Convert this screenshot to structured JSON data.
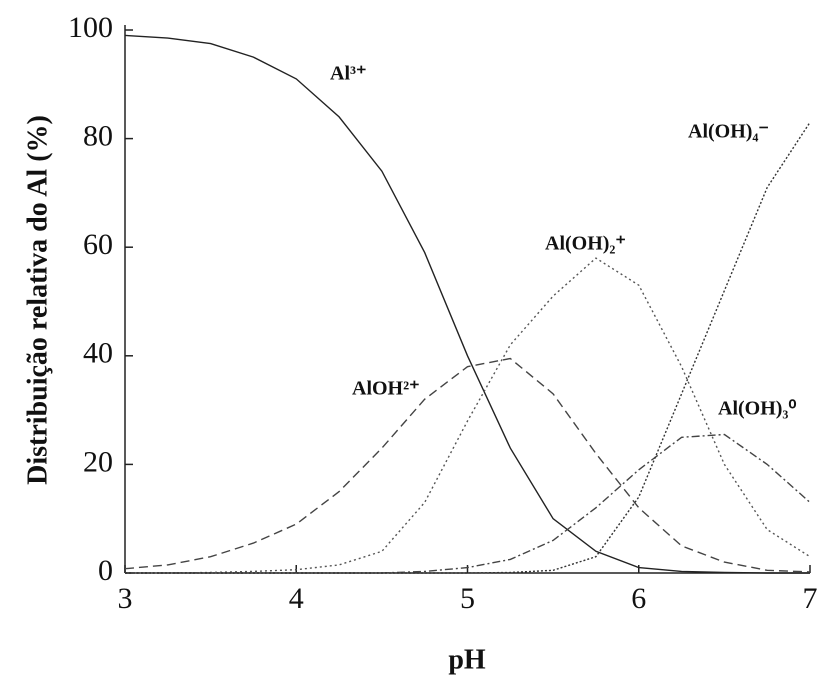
{
  "chart_data": {
    "type": "line",
    "x_label": "pH",
    "y_label": "Distribuição relativa do Al (%)",
    "x": [
      3,
      3.25,
      3.5,
      3.75,
      4,
      4.25,
      4.5,
      4.75,
      5,
      5.25,
      5.5,
      5.75,
      6,
      6.25,
      6.5,
      6.75,
      7
    ],
    "xlim": [
      3,
      7
    ],
    "xticks": [
      3,
      4,
      5,
      6,
      7
    ],
    "ylim": [
      0,
      100
    ],
    "yticks": [
      0,
      20,
      40,
      60,
      80,
      100
    ],
    "series": [
      {
        "name": "Al³⁺",
        "color": "#222222",
        "linestyle": "solid",
        "values": [
          99,
          98.5,
          97.5,
          95,
          91,
          84,
          74,
          59,
          40,
          23,
          10,
          4,
          1,
          0.3,
          0.1,
          0,
          0
        ]
      },
      {
        "name": "AlOH²⁺",
        "color": "#444444",
        "linestyle": "dashed",
        "values": [
          0.8,
          1.5,
          3,
          5.5,
          9,
          15,
          23,
          32,
          38,
          39.5,
          33,
          22,
          12,
          5,
          2,
          0.5,
          0.2
        ]
      },
      {
        "name": "Al(OH)₂⁺",
        "color": "#555555",
        "linestyle": "dotted",
        "values": [
          0,
          0,
          0.1,
          0.3,
          0.6,
          1.5,
          4,
          13,
          28,
          42,
          51,
          58,
          53,
          38,
          20,
          8,
          3
        ]
      },
      {
        "name": "Al(OH)₃⁰",
        "color": "#444444",
        "linestyle": "dashdot",
        "values": [
          0,
          0,
          0,
          0,
          0,
          0,
          0,
          0.3,
          1,
          2.5,
          6,
          12,
          19,
          25,
          25.5,
          20,
          13
        ]
      },
      {
        "name": "Al(OH)₄⁻",
        "color": "#333333",
        "linestyle": "densedot",
        "values": [
          0,
          0,
          0,
          0,
          0,
          0,
          0,
          0,
          0,
          0.1,
          0.5,
          3,
          14,
          33,
          52,
          71,
          83
        ]
      }
    ]
  }
}
